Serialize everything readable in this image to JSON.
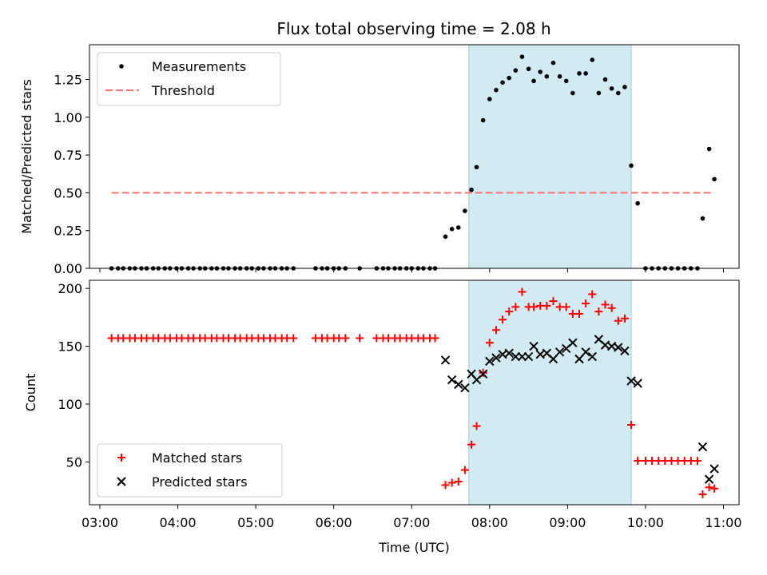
{
  "title": "Flux total observing time = 2.08 h",
  "shaded_region": {
    "x": [
      "07:44",
      "09:49"
    ],
    "color": "#add8e6",
    "alpha": 0.55
  },
  "threshold_color": "#ff7070",
  "chart_data": [
    {
      "type": "scatter",
      "panel": "top",
      "xlabel": "",
      "ylabel": "Matched/Predicted stars",
      "xlim": [
        "02:52",
        "11:12"
      ],
      "ylim": [
        0,
        1.48
      ],
      "yticks": [
        0.0,
        0.25,
        0.5,
        0.75,
        1.0,
        1.25
      ],
      "ytick_labels": [
        "0.00",
        "0.25",
        "0.50",
        "0.75",
        "1.00",
        "1.25"
      ],
      "xticks": [
        "03:00",
        "04:00",
        "05:00",
        "06:00",
        "07:00",
        "08:00",
        "09:00",
        "10:00",
        "11:00"
      ],
      "legend": "top-left",
      "series": [
        {
          "name": "Measurements",
          "marker": "dot",
          "color": "#000000",
          "points": [
            [
              "03:09",
              0
            ],
            [
              "03:14",
              0
            ],
            [
              "03:18",
              0
            ],
            [
              "03:23",
              0
            ],
            [
              "03:27",
              0
            ],
            [
              "03:32",
              0
            ],
            [
              "03:36",
              0
            ],
            [
              "03:41",
              0
            ],
            [
              "03:45",
              0
            ],
            [
              "03:50",
              0
            ],
            [
              "03:54",
              0
            ],
            [
              "03:59",
              0
            ],
            [
              "04:03",
              0
            ],
            [
              "04:08",
              0
            ],
            [
              "04:12",
              0
            ],
            [
              "04:17",
              0
            ],
            [
              "04:21",
              0
            ],
            [
              "04:26",
              0
            ],
            [
              "04:30",
              0
            ],
            [
              "04:35",
              0
            ],
            [
              "04:39",
              0
            ],
            [
              "04:44",
              0
            ],
            [
              "04:48",
              0
            ],
            [
              "04:53",
              0
            ],
            [
              "04:57",
              0
            ],
            [
              "05:02",
              0
            ],
            [
              "05:06",
              0
            ],
            [
              "05:11",
              0
            ],
            [
              "05:15",
              0
            ],
            [
              "05:20",
              0
            ],
            [
              "05:24",
              0
            ],
            [
              "05:29",
              0
            ],
            [
              "05:46",
              0
            ],
            [
              "05:51",
              0
            ],
            [
              "05:55",
              0
            ],
            [
              "06:00",
              0
            ],
            [
              "06:04",
              0
            ],
            [
              "06:09",
              0
            ],
            [
              "06:20",
              0
            ],
            [
              "06:33",
              0
            ],
            [
              "06:38",
              0
            ],
            [
              "06:42",
              0
            ],
            [
              "06:47",
              0
            ],
            [
              "06:51",
              0
            ],
            [
              "06:56",
              0
            ],
            [
              "07:00",
              0
            ],
            [
              "07:05",
              0
            ],
            [
              "07:09",
              0
            ],
            [
              "07:14",
              0
            ],
            [
              "07:18",
              0
            ],
            [
              "07:26",
              0.21
            ],
            [
              "07:31",
              0.26
            ],
            [
              "07:36",
              0.27
            ],
            [
              "07:41",
              0.38
            ],
            [
              "07:46",
              0.52
            ],
            [
              "07:50",
              0.67
            ],
            [
              "07:55",
              0.98
            ],
            [
              "08:00",
              1.12
            ],
            [
              "08:05",
              1.18
            ],
            [
              "08:10",
              1.23
            ],
            [
              "08:15",
              1.26
            ],
            [
              "08:20",
              1.31
            ],
            [
              "08:25",
              1.4
            ],
            [
              "08:30",
              1.32
            ],
            [
              "08:34",
              1.24
            ],
            [
              "08:39",
              1.3
            ],
            [
              "08:44",
              1.27
            ],
            [
              "08:49",
              1.36
            ],
            [
              "08:54",
              1.27
            ],
            [
              "08:59",
              1.24
            ],
            [
              "09:04",
              1.16
            ],
            [
              "09:09",
              1.29
            ],
            [
              "09:14",
              1.29
            ],
            [
              "09:19",
              1.38
            ],
            [
              "09:24",
              1.16
            ],
            [
              "09:29",
              1.25
            ],
            [
              "09:34",
              1.19
            ],
            [
              "09:39",
              1.16
            ],
            [
              "09:44",
              1.2
            ],
            [
              "09:49",
              0.68
            ],
            [
              "09:54",
              0.43
            ],
            [
              "10:00",
              0
            ],
            [
              "10:05",
              0
            ],
            [
              "10:10",
              0
            ],
            [
              "10:15",
              0
            ],
            [
              "10:20",
              0
            ],
            [
              "10:25",
              0
            ],
            [
              "10:30",
              0
            ],
            [
              "10:35",
              0
            ],
            [
              "10:40",
              0
            ],
            [
              "10:44",
              0.33
            ],
            [
              "10:49",
              0.79
            ],
            [
              "10:53",
              0.59
            ]
          ]
        },
        {
          "name": "Threshold",
          "style": "dashed",
          "color": "#ff7070",
          "points": [
            [
              "03:09",
              0.5
            ],
            [
              "10:53",
              0.5
            ]
          ]
        }
      ]
    },
    {
      "type": "scatter",
      "panel": "bottom",
      "xlabel": "Time (UTC)",
      "ylabel": "Count",
      "xlim": [
        "02:52",
        "11:12"
      ],
      "ylim": [
        13,
        207
      ],
      "yticks": [
        50,
        100,
        150,
        200
      ],
      "ytick_labels": [
        "50",
        "100",
        "150",
        "200"
      ],
      "xticks": [
        "03:00",
        "04:00",
        "05:00",
        "06:00",
        "07:00",
        "08:00",
        "09:00",
        "10:00",
        "11:00"
      ],
      "xtick_labels": [
        "03:00",
        "04:00",
        "05:00",
        "06:00",
        "07:00",
        "08:00",
        "09:00",
        "10:00",
        "11:00"
      ],
      "legend": "bottom-left",
      "series": [
        {
          "name": "Matched stars",
          "marker": "plus",
          "color": "#ff0000",
          "points": [
            [
              "03:09",
              157
            ],
            [
              "03:14",
              157
            ],
            [
              "03:18",
              157
            ],
            [
              "03:23",
              157
            ],
            [
              "03:27",
              157
            ],
            [
              "03:32",
              157
            ],
            [
              "03:36",
              157
            ],
            [
              "03:41",
              157
            ],
            [
              "03:45",
              157
            ],
            [
              "03:50",
              157
            ],
            [
              "03:54",
              157
            ],
            [
              "03:59",
              157
            ],
            [
              "04:03",
              157
            ],
            [
              "04:08",
              157
            ],
            [
              "04:12",
              157
            ],
            [
              "04:17",
              157
            ],
            [
              "04:21",
              157
            ],
            [
              "04:26",
              157
            ],
            [
              "04:30",
              157
            ],
            [
              "04:35",
              157
            ],
            [
              "04:39",
              157
            ],
            [
              "04:44",
              157
            ],
            [
              "04:48",
              157
            ],
            [
              "04:53",
              157
            ],
            [
              "04:57",
              157
            ],
            [
              "05:02",
              157
            ],
            [
              "05:06",
              157
            ],
            [
              "05:11",
              157
            ],
            [
              "05:15",
              157
            ],
            [
              "05:20",
              157
            ],
            [
              "05:24",
              157
            ],
            [
              "05:29",
              157
            ],
            [
              "05:46",
              157
            ],
            [
              "05:51",
              157
            ],
            [
              "05:55",
              157
            ],
            [
              "06:00",
              157
            ],
            [
              "06:04",
              157
            ],
            [
              "06:09",
              157
            ],
            [
              "06:20",
              157
            ],
            [
              "06:33",
              157
            ],
            [
              "06:38",
              157
            ],
            [
              "06:42",
              157
            ],
            [
              "06:47",
              157
            ],
            [
              "06:51",
              157
            ],
            [
              "06:56",
              157
            ],
            [
              "07:00",
              157
            ],
            [
              "07:05",
              157
            ],
            [
              "07:09",
              157
            ],
            [
              "07:14",
              157
            ],
            [
              "07:18",
              157
            ],
            [
              "07:26",
              30
            ],
            [
              "07:31",
              32
            ],
            [
              "07:36",
              33
            ],
            [
              "07:41",
              43
            ],
            [
              "07:46",
              65
            ],
            [
              "07:50",
              81
            ],
            [
              "07:55",
              127
            ],
            [
              "08:00",
              153
            ],
            [
              "08:05",
              164
            ],
            [
              "08:10",
              173
            ],
            [
              "08:15",
              180
            ],
            [
              "08:20",
              184
            ],
            [
              "08:25",
              197
            ],
            [
              "08:30",
              184
            ],
            [
              "08:34",
              184
            ],
            [
              "08:39",
              185
            ],
            [
              "08:44",
              185
            ],
            [
              "08:49",
              189
            ],
            [
              "08:54",
              184
            ],
            [
              "08:59",
              184
            ],
            [
              "09:04",
              178
            ],
            [
              "09:09",
              178
            ],
            [
              "09:14",
              187
            ],
            [
              "09:19",
              195
            ],
            [
              "09:24",
              180
            ],
            [
              "09:29",
              186
            ],
            [
              "09:34",
              183
            ],
            [
              "09:39",
              172
            ],
            [
              "09:44",
              174
            ],
            [
              "09:49",
              82
            ],
            [
              "09:54",
              51
            ],
            [
              "10:00",
              51
            ],
            [
              "10:05",
              51
            ],
            [
              "10:10",
              51
            ],
            [
              "10:15",
              51
            ],
            [
              "10:20",
              51
            ],
            [
              "10:25",
              51
            ],
            [
              "10:30",
              51
            ],
            [
              "10:35",
              51
            ],
            [
              "10:40",
              51
            ],
            [
              "10:44",
              22
            ],
            [
              "10:49",
              28
            ],
            [
              "10:53",
              27
            ]
          ]
        },
        {
          "name": "Predicted stars",
          "marker": "x",
          "color": "#000000",
          "points": [
            [
              "07:26",
              138
            ],
            [
              "07:31",
              121
            ],
            [
              "07:36",
              117
            ],
            [
              "07:41",
              114
            ],
            [
              "07:46",
              126
            ],
            [
              "07:50",
              121
            ],
            [
              "07:55",
              126
            ],
            [
              "08:00",
              137
            ],
            [
              "08:05",
              140
            ],
            [
              "08:10",
              143
            ],
            [
              "08:15",
              144
            ],
            [
              "08:20",
              141
            ],
            [
              "08:25",
              141
            ],
            [
              "08:30",
              141
            ],
            [
              "08:34",
              150
            ],
            [
              "08:39",
              143
            ],
            [
              "08:44",
              144
            ],
            [
              "08:49",
              139
            ],
            [
              "08:54",
              145
            ],
            [
              "08:59",
              148
            ],
            [
              "09:04",
              153
            ],
            [
              "09:09",
              139
            ],
            [
              "09:14",
              145
            ],
            [
              "09:19",
              141
            ],
            [
              "09:24",
              156
            ],
            [
              "09:29",
              151
            ],
            [
              "09:34",
              150
            ],
            [
              "09:39",
              149
            ],
            [
              "09:44",
              146
            ],
            [
              "09:49",
              120
            ],
            [
              "09:54",
              118
            ],
            [
              "10:44",
              63
            ],
            [
              "10:49",
              35
            ],
            [
              "10:53",
              44
            ]
          ]
        }
      ]
    }
  ]
}
